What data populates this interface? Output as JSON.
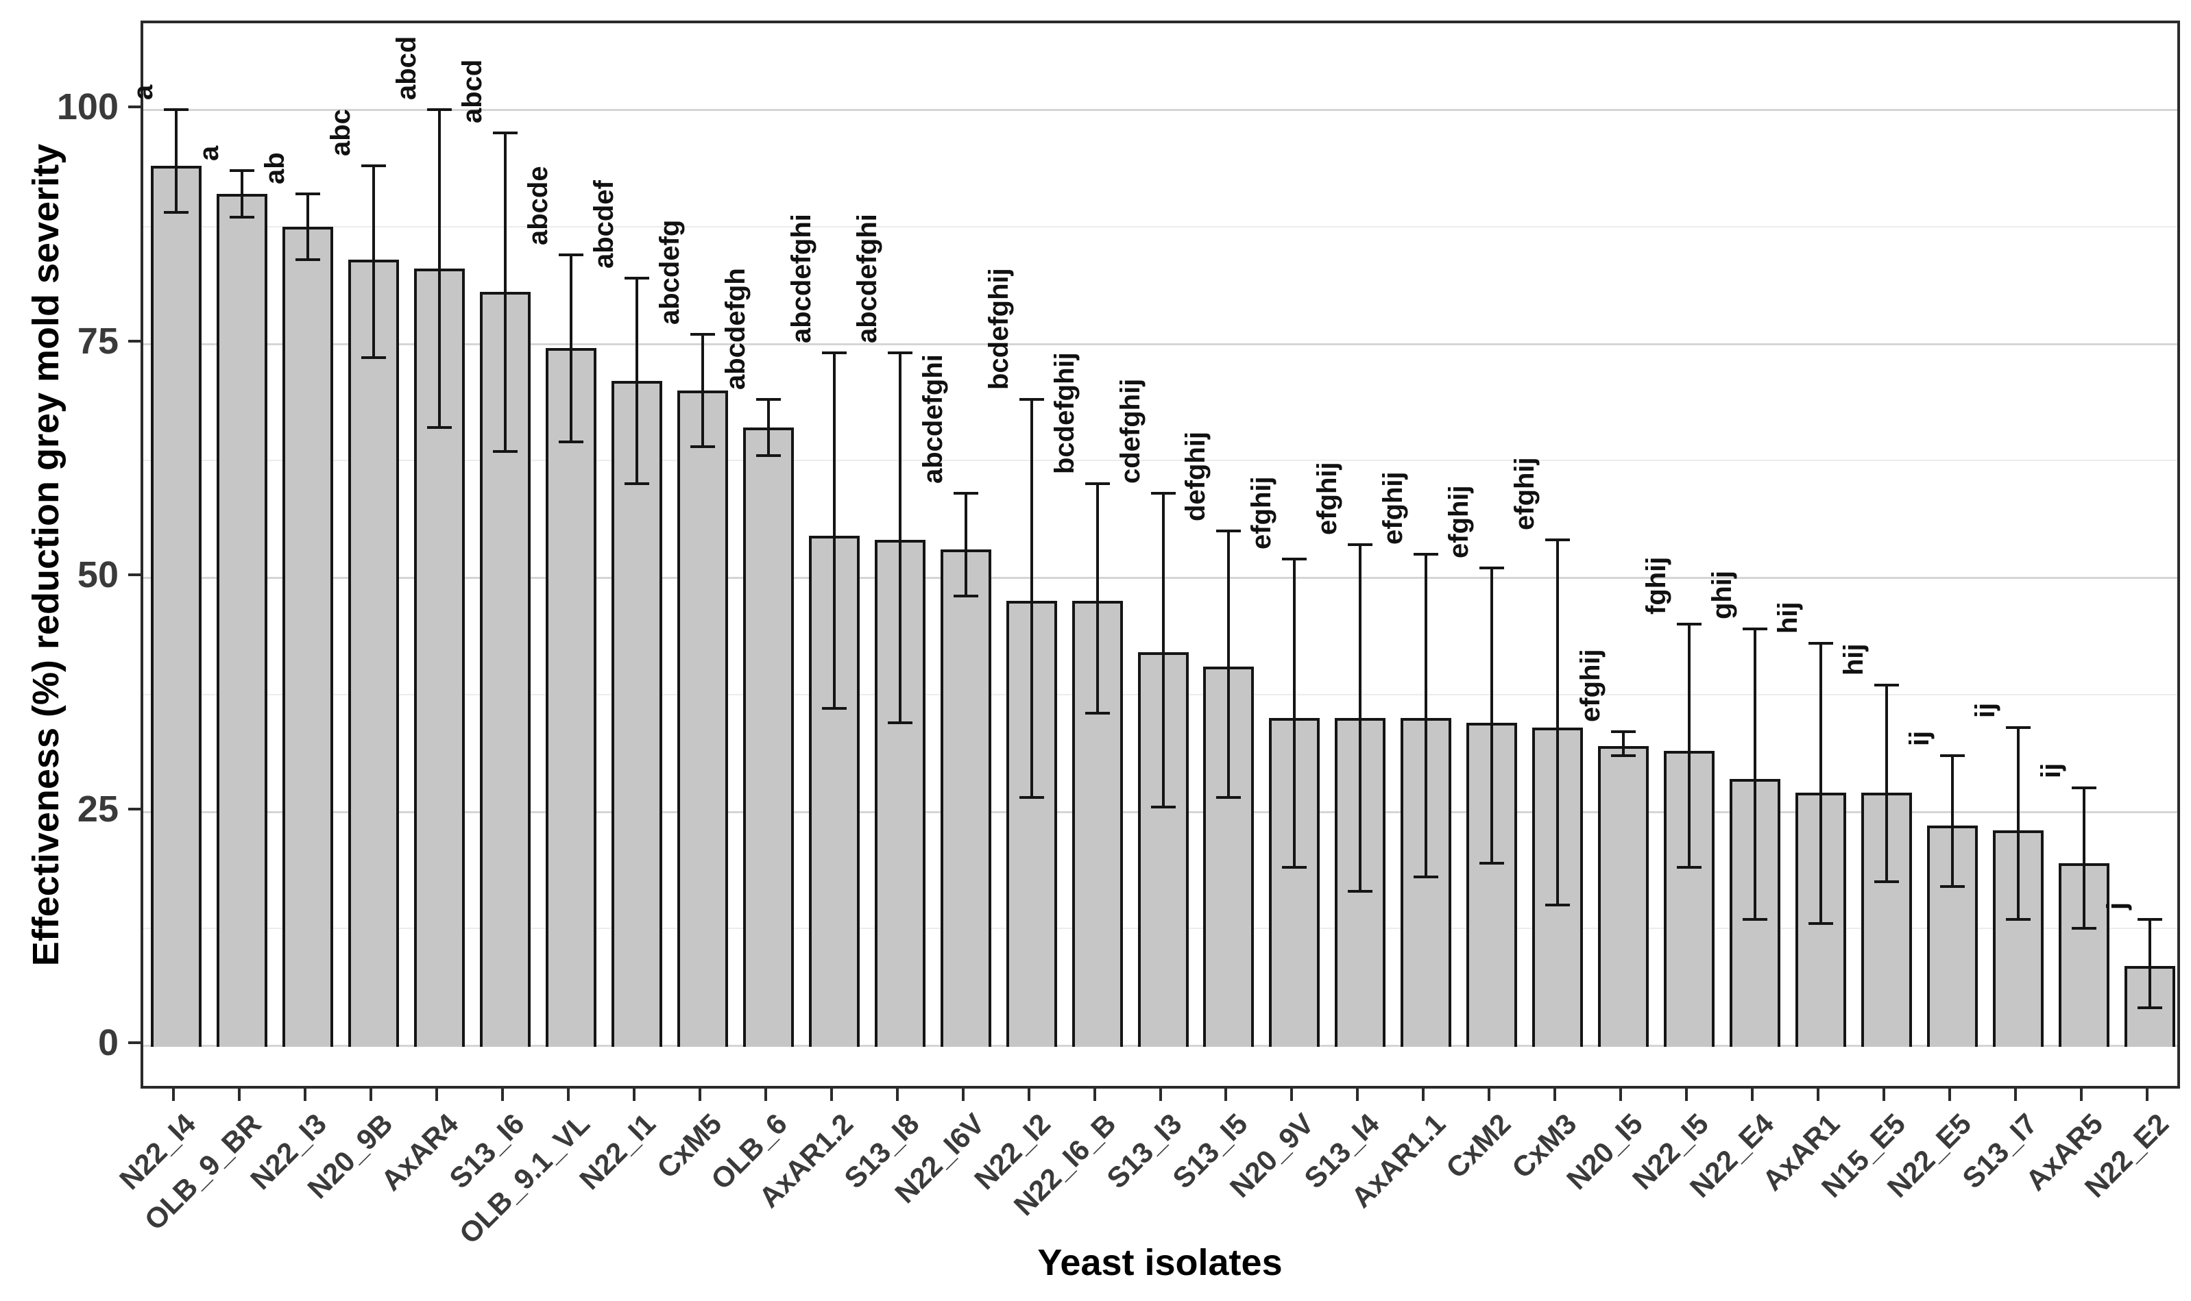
{
  "chart_data": {
    "type": "bar",
    "title": "",
    "xlabel": "Yeast isolates",
    "ylabel": "Effectiveness (%) reduction grey mold severity",
    "ylim": [
      0,
      109
    ],
    "yticks": [
      0,
      25,
      50,
      75,
      100
    ],
    "minor_gridlines": [
      12.5,
      37.5,
      62.5,
      87.5
    ],
    "grid": "horizontal-only",
    "legend": "none",
    "bar_fill_color": "#c6c6c6",
    "bar_border_color": "#151515",
    "error_bar_color": "#151515",
    "categories": [
      "N22_I4",
      "OLB_9_BR",
      "N22_I3",
      "N20_9B",
      "AxAR4",
      "S13_I6",
      "OLB_9.1_VL",
      "N22_I1",
      "CxM5",
      "OLB_6",
      "AxAR1.2",
      "S13_I8",
      "N22_I6V",
      "N22_I2",
      "N22_I6_B",
      "S13_I3",
      "S13_I5",
      "N20_9V",
      "S13_I4",
      "AxAR1.1",
      "CxM2",
      "CxM3",
      "N20_I5",
      "N22_I5",
      "N22_E4",
      "AxAR1",
      "N15_E5",
      "N22_E5",
      "S13_I7",
      "AxAR5",
      "N22_E2"
    ],
    "values": [
      94,
      91,
      87.5,
      84,
      83,
      80.5,
      74.5,
      71,
      70,
      66,
      54.5,
      54,
      53,
      47.5,
      47.5,
      42,
      40.5,
      35,
      35,
      35,
      34.5,
      34,
      32,
      31.5,
      28.5,
      27,
      27,
      23.5,
      23,
      19.5,
      8.5
    ],
    "error_low": [
      89,
      88.5,
      84,
      73.5,
      66,
      63.5,
      64.5,
      60,
      64,
      63,
      36,
      34.5,
      48,
      26.5,
      35.5,
      25.5,
      26.5,
      19,
      16.5,
      18,
      19.5,
      15,
      31,
      19,
      13.5,
      13,
      17.5,
      17,
      13.5,
      12.5,
      4
    ],
    "error_high": [
      100,
      93.5,
      91,
      94,
      100,
      97.5,
      84.5,
      82,
      76,
      69,
      74,
      74,
      59,
      69,
      60,
      59,
      55,
      52,
      53.5,
      52.5,
      51,
      54,
      33.5,
      45,
      44.5,
      43,
      38.5,
      31,
      34,
      27.5,
      13.5
    ],
    "sig_letters": [
      "a",
      "a",
      "ab",
      "abc",
      "abcd",
      "abcd",
      "abcde",
      "abcdef",
      "abcdefg",
      "abcdefgh",
      "abcdefghi",
      "abcdefghi",
      "abcdefghi",
      "bcdefghij",
      "bcdefghij",
      "cdefghij",
      "defghij",
      "efghij",
      "efghij",
      "efghij",
      "efghij",
      "efghij",
      "efghij",
      "fghij",
      "ghij",
      "hij",
      "hij",
      "ij",
      "ij",
      "ij",
      "j"
    ]
  }
}
